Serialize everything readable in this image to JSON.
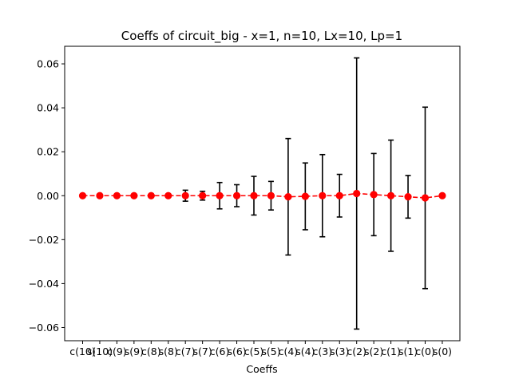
{
  "chart_data": {
    "type": "scatter",
    "title": "Coeffs of circuit_big - x=1, n=10, Lx=10, Lp=1",
    "xlabel": "Coeffs",
    "ylabel": "",
    "categories": [
      "c(10)",
      "s(10)",
      "c(9)",
      "s(9)",
      "c(8)",
      "s(8)",
      "c(7)",
      "s(7)",
      "c(6)",
      "s(6)",
      "c(5)",
      "s(5)",
      "c(4)",
      "s(4)",
      "c(3)",
      "s(3)",
      "c(2)",
      "s(2)",
      "c(1)",
      "s(1)",
      "c(0)",
      "s(0)"
    ],
    "ylim": [
      -0.066,
      0.068
    ],
    "yticks": [
      -0.06,
      -0.04,
      -0.02,
      0.0,
      0.02,
      0.04,
      0.06
    ],
    "ytick_labels": [
      "−0.06",
      "−0.04",
      "−0.02",
      "0.00",
      "0.02",
      "0.04",
      "0.06"
    ],
    "series": [
      {
        "values": [
          0.0,
          0.0,
          0.0,
          0.0,
          0.0,
          0.0,
          0.0,
          0.0,
          0.0,
          0.0,
          0.0,
          0.0,
          -0.0005,
          -0.0003,
          0.0,
          0.0,
          0.001,
          0.0005,
          0.0,
          -0.0005,
          -0.001,
          0.0
        ],
        "errors": [
          0.0,
          0.0,
          0.0,
          0.0,
          0.0,
          0.0,
          0.0025,
          0.002,
          0.006,
          0.005,
          0.0088,
          0.0065,
          0.0265,
          0.0152,
          0.0187,
          0.0097,
          0.0617,
          0.0187,
          0.0253,
          0.0097,
          0.0413,
          0.0
        ],
        "marker_color": "#ff0000",
        "line_style": "dashed",
        "errorbar_color": "#000000"
      }
    ],
    "grid": false,
    "legend": "none"
  }
}
